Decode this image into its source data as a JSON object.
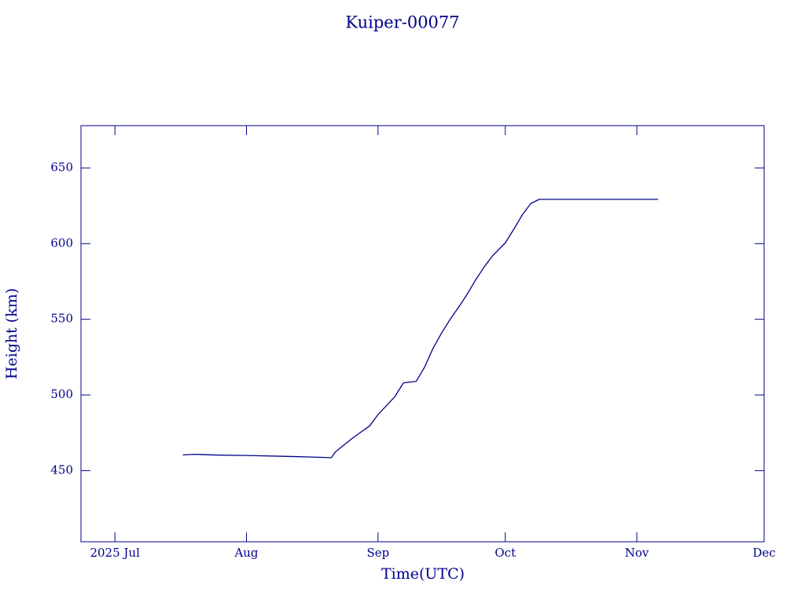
{
  "chart_data": {
    "type": "line",
    "title": "Kuiper-00077",
    "x_label": "Time(UTC)",
    "y_label": "Height (km)",
    "x": [
      "2025-07-17",
      "2025-07-20",
      "2025-07-25",
      "2025-08-01",
      "2025-08-08",
      "2025-08-15",
      "2025-08-21",
      "2025-08-22",
      "2025-08-24",
      "2025-08-26",
      "2025-08-28",
      "2025-08-30",
      "2025-09-01",
      "2025-09-03",
      "2025-09-05",
      "2025-09-07",
      "2025-09-10",
      "2025-09-12",
      "2025-09-14",
      "2025-09-16",
      "2025-09-18",
      "2025-09-20",
      "2025-09-22",
      "2025-09-24",
      "2025-09-26",
      "2025-09-28",
      "2025-10-01",
      "2025-10-03",
      "2025-10-05",
      "2025-10-07",
      "2025-10-09",
      "2025-10-15",
      "2025-10-25",
      "2025-11-06"
    ],
    "series": [
      {
        "name": "Height",
        "color": "#00008b",
        "values": [
          460.4,
          460.8,
          460.3,
          460.0,
          459.6,
          459.1,
          458.6,
          462.5,
          467.0,
          471.5,
          475.5,
          479.5,
          487.0,
          493.0,
          499.0,
          508.0,
          509.0,
          518.5,
          531.0,
          541.0,
          550.0,
          558.0,
          566.5,
          576.0,
          584.5,
          592.0,
          600.5,
          609.5,
          619.0,
          626.5,
          629.3,
          629.3,
          629.3,
          629.3
        ]
      }
    ],
    "xlim": [
      "2025-06-23",
      "2025-12-01"
    ],
    "xticks": [
      {
        "value": "2025-07",
        "label": "2025 Jul"
      },
      {
        "value": "2025-08",
        "label": "Aug"
      },
      {
        "value": "2025-09",
        "label": "Sep"
      },
      {
        "value": "2025-10",
        "label": "Oct"
      },
      {
        "value": "2025-11",
        "label": "Nov"
      },
      {
        "value": "2025-12",
        "label": "Dec"
      }
    ],
    "ylim": [
      403,
      678
    ],
    "yticks": [
      450,
      500,
      550,
      600,
      650
    ]
  }
}
